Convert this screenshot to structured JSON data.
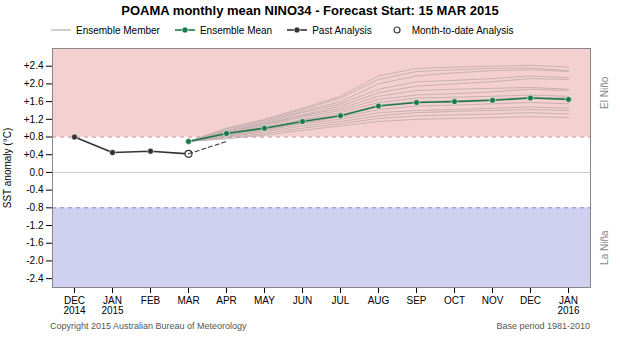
{
  "chart_data": {
    "type": "line",
    "title": "POAMA monthly mean NINO34 - Forecast Start: 15 MAR 2015",
    "ylabel": "SST anomaly (°C)",
    "categories": [
      "DEC\n2014",
      "JAN\n2015",
      "FEB",
      "MAR",
      "APR",
      "MAY",
      "JUN",
      "JUL",
      "AUG",
      "SEP",
      "OCT",
      "NOV",
      "DEC",
      "JAN\n2016"
    ],
    "ylim": [
      -2.6,
      2.8
    ],
    "yticks": [
      -2.4,
      {
        "value": -2.0,
        "label": "-2.0"
      },
      -1.6,
      -1.2,
      -0.8,
      -0.4,
      {
        "value": 0.0,
        "label": "0.0"
      },
      {
        "value": 0.4,
        "label": "+0.4"
      },
      {
        "value": 0.8,
        "label": "+0.8"
      },
      {
        "value": 1.2,
        "label": "+1.2"
      },
      {
        "value": 1.6,
        "label": "+1.6"
      },
      {
        "value": 2.0,
        "label": "+2.0"
      },
      {
        "value": 2.4,
        "label": "+2.4"
      }
    ],
    "grid": false,
    "legend": "upper left",
    "regions": [
      {
        "label": "El Niño",
        "from": 0.8,
        "to": 2.8,
        "threshold": 0.8,
        "color": "#f5d0d0",
        "line_color": "#d88080"
      },
      {
        "label": "La Niña",
        "from": -2.6,
        "to": -0.8,
        "threshold": -0.8,
        "color": "#d0d0f0",
        "line_color": "#8888cc"
      }
    ],
    "reference_lines": [
      {
        "value": 0,
        "color": "#bbbbbb"
      }
    ],
    "series": [
      {
        "name": "Ensemble Member",
        "color": "#bbaaaa",
        "values": [
          null,
          null,
          null,
          0.7,
          0.82,
          0.95,
          1.1,
          1.2,
          1.35,
          1.4,
          1.42,
          1.45,
          1.48,
          1.45
        ]
      },
      {
        "name": "Ensemble Member",
        "color": "#bbaaaa",
        "values": [
          null,
          null,
          null,
          0.7,
          0.85,
          1.0,
          1.18,
          1.3,
          1.52,
          1.6,
          1.62,
          1.65,
          1.7,
          1.68
        ]
      },
      {
        "name": "Ensemble Member",
        "color": "#bbaaaa",
        "values": [
          null,
          null,
          null,
          0.7,
          0.88,
          1.05,
          1.25,
          1.4,
          1.65,
          1.75,
          1.78,
          1.82,
          1.88,
          1.85
        ]
      },
      {
        "name": "Ensemble Member",
        "color": "#bbaaaa",
        "values": [
          null,
          null,
          null,
          0.7,
          0.9,
          1.1,
          1.3,
          1.5,
          1.8,
          1.95,
          2.0,
          2.05,
          2.12,
          2.1
        ]
      },
      {
        "name": "Ensemble Member",
        "color": "#bbaaaa",
        "values": [
          null,
          null,
          null,
          0.7,
          0.95,
          1.15,
          1.38,
          1.6,
          2.0,
          2.18,
          2.25,
          2.3,
          2.32,
          2.28
        ]
      },
      {
        "name": "Ensemble Member",
        "color": "#bbaaaa",
        "values": [
          null,
          null,
          null,
          0.7,
          0.98,
          1.18,
          1.42,
          1.68,
          2.1,
          2.28,
          2.32,
          2.35,
          2.36,
          2.3
        ]
      },
      {
        "name": "Ensemble Member",
        "color": "#bbaaaa",
        "values": [
          null,
          null,
          null,
          0.7,
          0.78,
          0.88,
          1.0,
          1.1,
          1.22,
          1.28,
          1.3,
          1.32,
          1.35,
          1.32
        ]
      },
      {
        "name": "Ensemble Member",
        "color": "#bbaaaa",
        "values": [
          null,
          null,
          null,
          0.7,
          0.8,
          0.92,
          1.05,
          1.15,
          1.28,
          1.35,
          1.38,
          1.4,
          1.42,
          1.4
        ]
      },
      {
        "name": "Ensemble Member",
        "color": "#bbaaaa",
        "values": [
          null,
          null,
          null,
          0.7,
          0.83,
          0.97,
          1.12,
          1.25,
          1.42,
          1.5,
          1.52,
          1.55,
          1.58,
          1.55
        ]
      },
      {
        "name": "Ensemble Member",
        "color": "#bbaaaa",
        "values": [
          null,
          null,
          null,
          0.7,
          0.87,
          1.02,
          1.2,
          1.35,
          1.58,
          1.68,
          1.7,
          1.72,
          1.75,
          1.72
        ]
      },
      {
        "name": "Ensemble Member",
        "color": "#bbaaaa",
        "values": [
          null,
          null,
          null,
          0.7,
          0.91,
          1.08,
          1.28,
          1.45,
          1.72,
          1.85,
          1.88,
          1.9,
          1.92,
          1.88
        ]
      },
      {
        "name": "Ensemble Member",
        "color": "#bbaaaa",
        "values": [
          null,
          null,
          null,
          0.7,
          0.76,
          0.84,
          0.95,
          1.05,
          1.15,
          1.2,
          1.22,
          1.24,
          1.26,
          1.24
        ]
      },
      {
        "name": "Ensemble Member",
        "color": "#bbaaaa",
        "values": [
          null,
          null,
          null,
          0.7,
          0.93,
          1.12,
          1.35,
          1.55,
          1.88,
          2.05,
          2.08,
          2.12,
          2.18,
          2.14
        ]
      },
      {
        "name": "Ensemble Member",
        "color": "#bbaaaa",
        "values": [
          null,
          null,
          null,
          0.7,
          1.0,
          1.2,
          1.45,
          1.72,
          2.18,
          2.35,
          2.38,
          2.4,
          2.42,
          2.38
        ]
      },
      {
        "name": "Ensemble Mean",
        "color": "#1a7a4a",
        "marker": "circle",
        "values": [
          null,
          null,
          null,
          0.7,
          0.88,
          1.0,
          1.15,
          1.28,
          1.5,
          1.58,
          1.6,
          1.63,
          1.68,
          1.65
        ]
      },
      {
        "name": "Past Analysis",
        "color": "#333333",
        "marker": "circle",
        "values": [
          0.8,
          0.45,
          0.48,
          0.42,
          null,
          null,
          null,
          null,
          null,
          null,
          null,
          null,
          null,
          null
        ]
      },
      {
        "name": "Month-to-date Analysis",
        "type": "scatter",
        "color": "#333333",
        "marker": "open_circle",
        "values": [
          null,
          null,
          null,
          0.42,
          null,
          null,
          null,
          null,
          null,
          null,
          null,
          null,
          null,
          null
        ]
      },
      {
        "color": "#333333",
        "line_style": "dashed",
        "values": [
          null,
          null,
          null,
          0.42,
          0.7,
          null,
          null,
          null,
          null,
          null,
          null,
          null,
          null,
          null
        ]
      }
    ],
    "annotations": [
      "Copyright 2015 Australian Bureau of Meteorology",
      "Base period 1981-2010"
    ]
  }
}
